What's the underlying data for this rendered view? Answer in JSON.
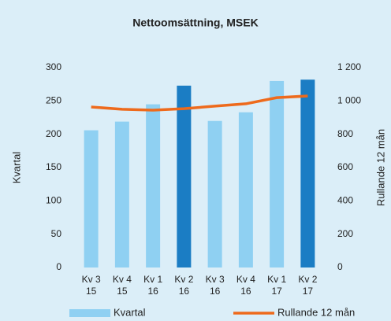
{
  "chart_data": {
    "type": "bar_line",
    "title": "Nettoomsättning, MSEK",
    "categories": [
      [
        "Kv 3",
        "15"
      ],
      [
        "Kv 4",
        "15"
      ],
      [
        "Kv 1",
        "16"
      ],
      [
        "Kv 2",
        "16"
      ],
      [
        "Kv 3",
        "16"
      ],
      [
        "Kv 4",
        "16"
      ],
      [
        "Kv 1",
        "17"
      ],
      [
        "Kv 2",
        "17"
      ]
    ],
    "series": [
      {
        "name": "Kvartal",
        "type": "bar",
        "color": "#8fd0f2",
        "values": [
          206,
          219,
          245,
          273,
          220,
          233,
          280,
          282
        ],
        "colors": [
          "#8fd0f2",
          "#8fd0f2",
          "#8fd0f2",
          "#1b7dc4",
          "#8fd0f2",
          "#8fd0f2",
          "#8fd0f2",
          "#1b7dc4"
        ]
      },
      {
        "name": "Rullande 12 mån",
        "type": "line",
        "axis": "y2",
        "color": "#ee6a1c",
        "values": [
          964,
          950,
          945,
          954,
          969,
          983,
          1020,
          1030
        ]
      }
    ],
    "ylabel": "Kvartal",
    "y2label": "Rullande 12 mån",
    "ylim": [
      0,
      300
    ],
    "yticks": [
      0,
      50,
      100,
      150,
      200,
      250,
      300
    ],
    "y2lim": [
      0,
      1200
    ],
    "y2ticks": [
      0,
      200,
      400,
      600,
      800,
      {
        "value": 1000,
        "label": "1 000"
      },
      {
        "value": 1200,
        "label": "1 200"
      }
    ],
    "legend": "bottom"
  }
}
